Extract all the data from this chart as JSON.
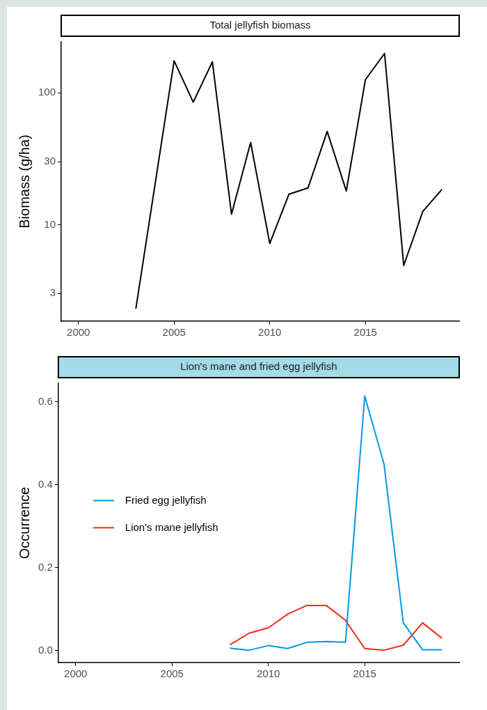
{
  "chart_data": [
    {
      "type": "line",
      "title": "Total jellyfish biomass",
      "ylabel": "Biomass (g/ha)",
      "log": "y",
      "grid": false,
      "legend": false,
      "xlim": [
        1999.1,
        2019.9
      ],
      "xticks": [
        2000,
        2005,
        2010,
        2015
      ],
      "ylim": [
        1.85,
        244
      ],
      "yticks": [
        3,
        10,
        30,
        100
      ],
      "series": [
        {
          "color": "#000000",
          "x": [
            2003,
            2005,
            2006,
            2007,
            2008,
            2009,
            2010,
            2011,
            2012,
            2013,
            2014,
            2015,
            2016,
            2017,
            2018,
            2019
          ],
          "values": [
            2.3,
            175,
            85,
            172,
            12,
            42,
            7.2,
            17,
            19,
            51,
            18,
            126,
            199,
            4.9,
            12.6,
            18.5
          ]
        }
      ]
    },
    {
      "type": "line",
      "title": "Lion's mane and fried egg jellyfish",
      "ylabel": "Occurrence",
      "grid": false,
      "legend": "left",
      "xlim": [
        1999.1,
        2019.9
      ],
      "xticks": [
        2000,
        2005,
        2010,
        2015
      ],
      "ylim": [
        -0.029,
        0.645
      ],
      "yticks": [
        {
          "value": 0,
          "label": "0.0"
        },
        0.2,
        0.4,
        0.6
      ],
      "x": [
        2008,
        2009,
        2010,
        2011,
        2012,
        2013,
        2014,
        2015,
        2016,
        2017,
        2018,
        2019
      ],
      "series": [
        {
          "name": "Fried egg jellyfish",
          "color": "#0099e6",
          "values": [
            0.006,
            0.001,
            0.012,
            0.005,
            0.02,
            0.022,
            0.02,
            0.614,
            0.45,
            0.067,
            0.002,
            0.002
          ]
        },
        {
          "name": "Lion's mane jellyfish",
          "color": "#f8281c",
          "values": [
            0.014,
            0.042,
            0.055,
            0.088,
            0.109,
            0.109,
            0.073,
            0.005,
            0.001,
            0.013,
            0.067,
            0.03
          ]
        }
      ]
    }
  ]
}
